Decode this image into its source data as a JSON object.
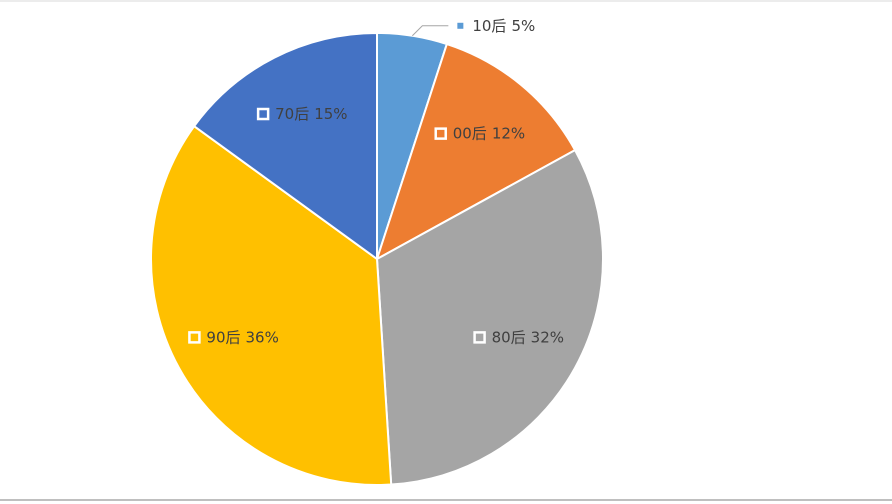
{
  "chart_data": {
    "type": "pie",
    "categories": [
      "10后",
      "00后",
      "80后",
      "90后",
      "70后"
    ],
    "values": [
      5,
      12,
      32,
      36,
      15
    ],
    "value_labels": [
      "5%",
      "12%",
      "32%",
      "36%",
      "15%"
    ],
    "colors": [
      "#5b9bd5",
      "#ed7d31",
      "#a5a5a5",
      "#ffc000",
      "#4472c4"
    ]
  }
}
